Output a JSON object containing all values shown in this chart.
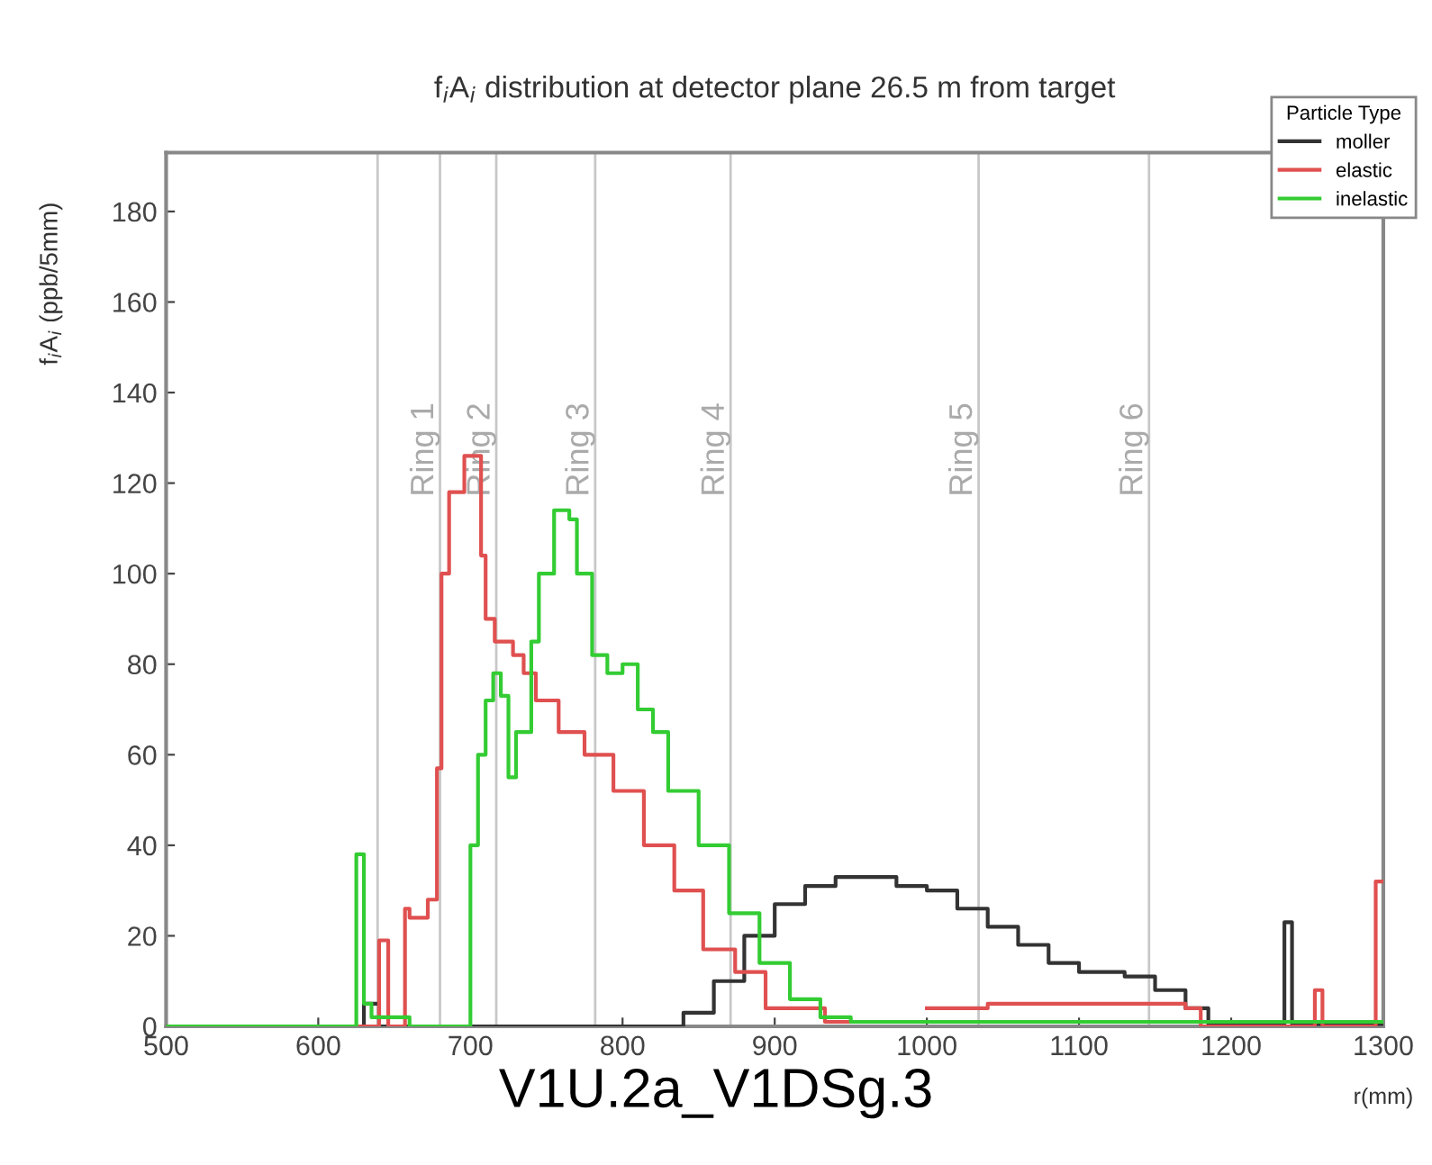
{
  "chart_data": {
    "type": "step",
    "title": "f$_{i}$A$_{i}$ distribution at detector plane 26.5 m from target",
    "ylabel": "f$_{i}$A$_{i}$ (ppb/5mm)",
    "xlabel": "r(mm)",
    "legend_title": "Particle Type",
    "legend": "top right",
    "grid": false,
    "xlim": [
      500,
      1300
    ],
    "ylim": [
      0,
      193
    ],
    "xticks": [
      500,
      600,
      700,
      800,
      900,
      1000,
      1100,
      1200,
      1300
    ],
    "yticks": [
      0,
      20,
      40,
      60,
      80,
      100,
      120,
      140,
      160,
      180
    ],
    "series": [
      {
        "name": "moller",
        "color": "#333333",
        "x": [
          500,
          620,
          630,
          640,
          820,
          840,
          860,
          880,
          900,
          920,
          940,
          960,
          980,
          1000,
          1020,
          1040,
          1060,
          1080,
          1100,
          1130,
          1150,
          1170,
          1185,
          1235,
          1240,
          1300
        ],
        "values": [
          0,
          0,
          5,
          0,
          0,
          3,
          10,
          20,
          27,
          31,
          33,
          33,
          31,
          30,
          26,
          22,
          18,
          14,
          12,
          11,
          8,
          4,
          0.5,
          23,
          0.5,
          0.5
        ]
      },
      {
        "name": "elastic",
        "color": "#e05050",
        "x": [
          500,
          640,
          646,
          657,
          660,
          672,
          678,
          681,
          686,
          696,
          707,
          710,
          716,
          728,
          735,
          743,
          758,
          775,
          794,
          814,
          834,
          853,
          874,
          894,
          933,
          960,
          1000,
          1040,
          1170,
          1180,
          1255,
          1260,
          1265,
          1295,
          1300
        ],
        "values": [
          0,
          19,
          0,
          26,
          24,
          28,
          57,
          100,
          118,
          126,
          104,
          90,
          85,
          82,
          78,
          72,
          65,
          60,
          52,
          40,
          30,
          17,
          12,
          4,
          1,
          null,
          4,
          5,
          4,
          0,
          8,
          0,
          0,
          32,
          32
        ]
      },
      {
        "name": "inelastic",
        "color": "#33cc33",
        "x": [
          500,
          625,
          630,
          635,
          660,
          695,
          700,
          705,
          710,
          715,
          720,
          725,
          730,
          740,
          745,
          755,
          765,
          770,
          780,
          790,
          800,
          810,
          820,
          830,
          850,
          870,
          890,
          910,
          930,
          950,
          1300
        ],
        "values": [
          0,
          38,
          5,
          2,
          0,
          0,
          40,
          60,
          72,
          78,
          73,
          55,
          65,
          85,
          100,
          114,
          112,
          100,
          82,
          78,
          80,
          70,
          65,
          52,
          40,
          25,
          14,
          6,
          2,
          1,
          1
        ]
      }
    ],
    "ref_lines": [
      {
        "axis": "x",
        "value": 639,
        "color": "#c8c8c8"
      },
      {
        "axis": "x",
        "value": 680,
        "label": "Ring 1",
        "color": "#c8c8c8"
      },
      {
        "axis": "x",
        "value": 717,
        "label": "Ring 2",
        "color": "#c8c8c8"
      },
      {
        "axis": "x",
        "value": 782,
        "label": "Ring 3",
        "color": "#c8c8c8"
      },
      {
        "axis": "x",
        "value": 871,
        "label": "Ring 4",
        "color": "#c8c8c8"
      },
      {
        "axis": "x",
        "value": 1034,
        "label": "Ring 5",
        "color": "#c8c8c8"
      },
      {
        "axis": "x",
        "value": 1146,
        "label": "Ring 6",
        "color": "#c8c8c8"
      }
    ],
    "annotations": [
      "V1U.2a_V1DSg.3"
    ]
  }
}
